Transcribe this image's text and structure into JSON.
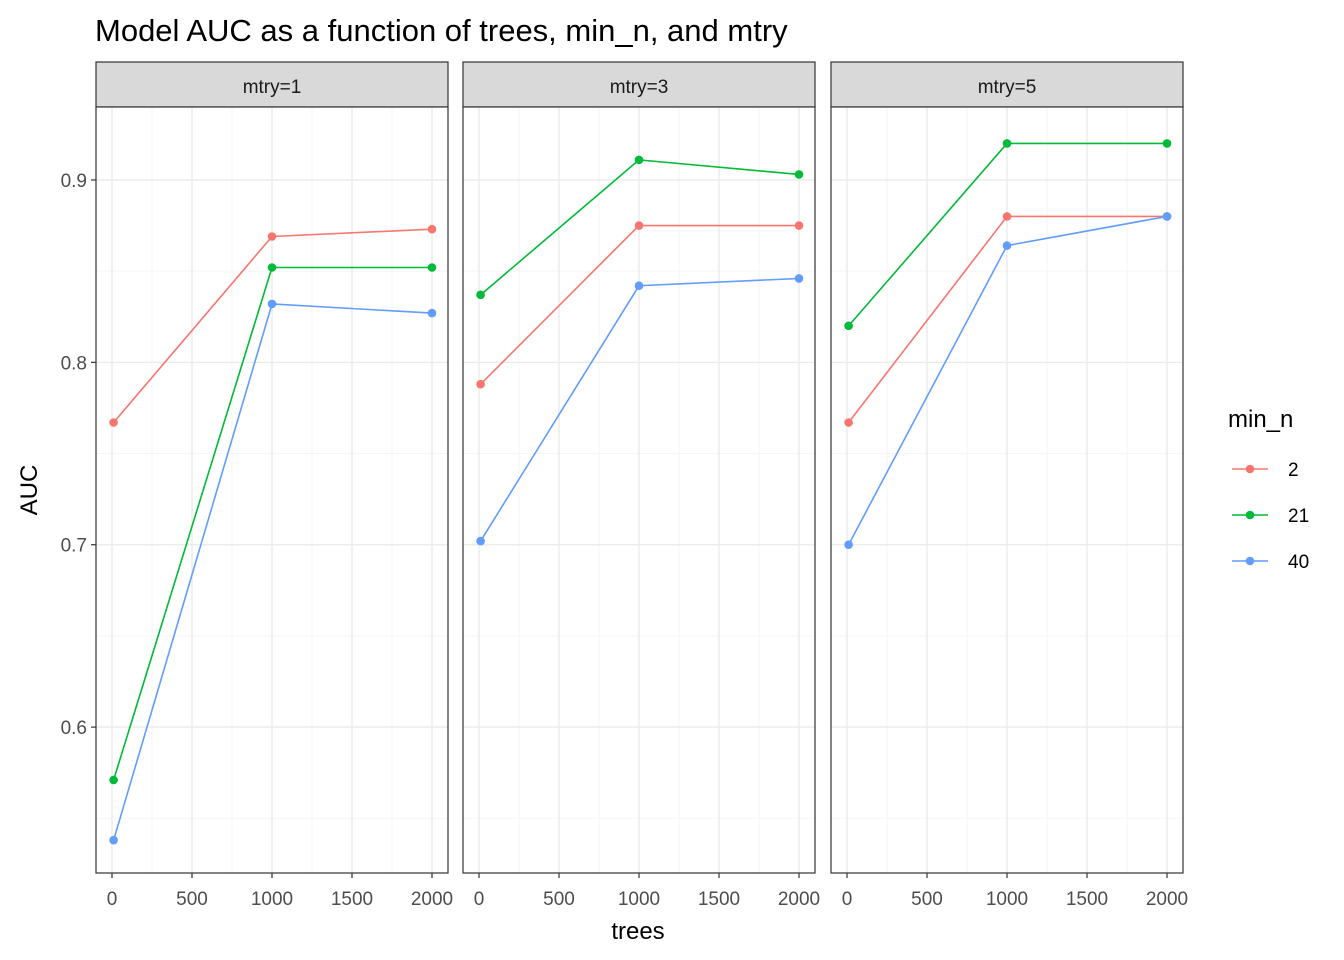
{
  "chart_data": {
    "type": "line",
    "title": "Model AUC as a function of trees, min_n, and mtry",
    "xlabel": "trees",
    "ylabel": "AUC",
    "x_ticks": [
      0,
      500,
      1000,
      1500,
      2000
    ],
    "y_ticks": [
      0.6,
      0.7,
      0.8,
      0.9
    ],
    "xlim": [
      -100,
      2100
    ],
    "ylim": [
      0.52,
      0.94
    ],
    "grid": true,
    "legend": {
      "title": "min_n",
      "placement": "right",
      "entries": [
        "2",
        "21",
        "40"
      ]
    },
    "colors": {
      "2": "#F8766D",
      "21": "#00BA38",
      "40": "#619CFF"
    },
    "panels": [
      {
        "label": "mtry=1",
        "x": [
          10,
          1000,
          2000
        ],
        "series": [
          {
            "name": "2",
            "values": [
              0.767,
              0.869,
              0.873
            ]
          },
          {
            "name": "21",
            "values": [
              0.571,
              0.852,
              0.852
            ]
          },
          {
            "name": "40",
            "values": [
              0.538,
              0.832,
              0.827
            ]
          }
        ]
      },
      {
        "label": "mtry=3",
        "x": [
          10,
          1000,
          2000
        ],
        "series": [
          {
            "name": "2",
            "values": [
              0.788,
              0.875,
              0.875
            ]
          },
          {
            "name": "21",
            "values": [
              0.837,
              0.911,
              0.903
            ]
          },
          {
            "name": "40",
            "values": [
              0.702,
              0.842,
              0.846
            ]
          }
        ]
      },
      {
        "label": "mtry=5",
        "x": [
          10,
          1000,
          2000
        ],
        "series": [
          {
            "name": "2",
            "values": [
              0.767,
              0.88,
              0.88
            ]
          },
          {
            "name": "21",
            "values": [
              0.82,
              0.92,
              0.92
            ]
          },
          {
            "name": "40",
            "values": [
              0.7,
              0.864,
              0.88
            ]
          }
        ]
      }
    ]
  }
}
